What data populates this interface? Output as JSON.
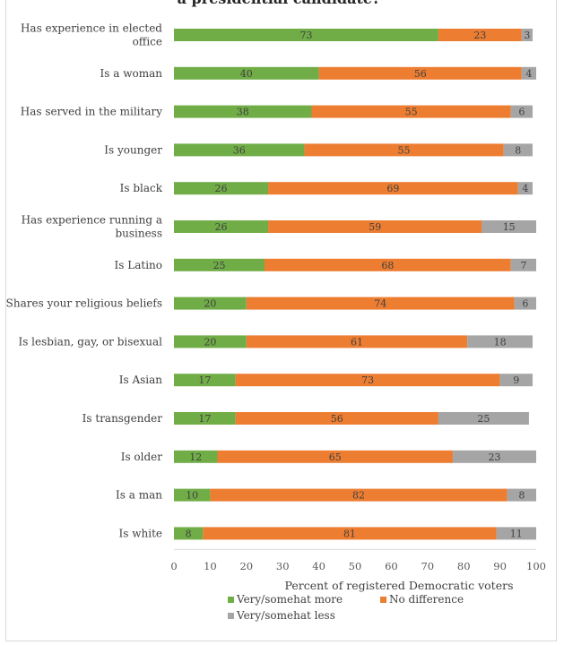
{
  "chart_data": {
    "type": "bar",
    "orientation": "horizontal",
    "stacked": true,
    "title": "a presidential candidate?",
    "xlabel": "Percent of registered Democratic voters",
    "ylabel": "",
    "xlim": [
      0,
      100
    ],
    "xticks": [
      0,
      10,
      20,
      30,
      40,
      50,
      60,
      70,
      80,
      90,
      100
    ],
    "grid": false,
    "legend_position": "bottom",
    "categories": [
      [
        "Has experience in elected",
        "office"
      ],
      [
        "Is a woman"
      ],
      [
        "Has served in the military"
      ],
      [
        "Is younger"
      ],
      [
        "Is black"
      ],
      [
        "Has experience running a",
        "business"
      ],
      [
        "Is Latino"
      ],
      [
        "Shares your religious beliefs"
      ],
      [
        "Is lesbian, gay, or bisexual"
      ],
      [
        "Is Asian"
      ],
      [
        "Is transgender"
      ],
      [
        "Is older"
      ],
      [
        "Is a man"
      ],
      [
        "Is white"
      ]
    ],
    "series": [
      {
        "name": "Very/somehat more",
        "color": "#70ad47",
        "values": [
          73,
          40,
          38,
          36,
          26,
          26,
          25,
          20,
          20,
          17,
          17,
          12,
          10,
          8
        ]
      },
      {
        "name": "No difference",
        "color": "#ed7d31",
        "values": [
          23,
          56,
          55,
          55,
          69,
          59,
          68,
          74,
          61,
          73,
          56,
          65,
          82,
          81
        ]
      },
      {
        "name": "Very/somehat less",
        "color": "#a5a5a5",
        "values": [
          3,
          4,
          6,
          8,
          4,
          15,
          7,
          6,
          18,
          9,
          25,
          23,
          8,
          11
        ]
      }
    ]
  }
}
